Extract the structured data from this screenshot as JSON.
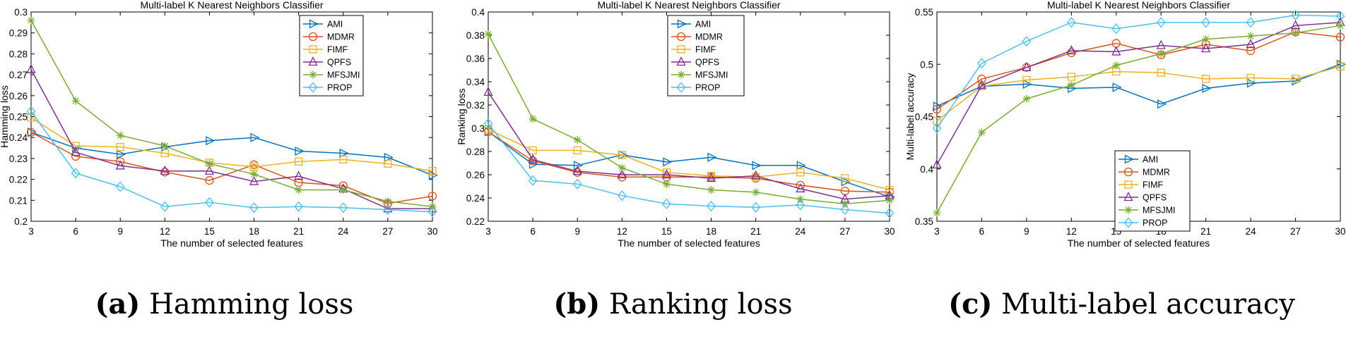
{
  "colors": {
    "AMI": "#0072BD",
    "MDMR": "#D95319",
    "FIMF": "#EDB120",
    "QPFS": "#7E2F8E",
    "MFSJMI": "#77AC30",
    "PROP": "#4DBEEE"
  },
  "chart_data": [
    {
      "type": "line",
      "title": "Multi-label K Nearest Neighbors Classifier",
      "xlabel": "The number of selected features",
      "ylabel": "Hamming loss",
      "caption_tag": "(a)",
      "caption_text": "Hamming loss",
      "x": [
        3,
        6,
        9,
        12,
        15,
        18,
        21,
        24,
        27,
        30
      ],
      "xlim": [
        3,
        30
      ],
      "ylim": [
        0.2,
        0.3
      ],
      "yticks": [
        0.2,
        0.21,
        0.22,
        0.23,
        0.24,
        0.25,
        0.26,
        0.27,
        0.28,
        0.29,
        0.3
      ],
      "ytick_labels": [
        "0.2",
        "0.21",
        "0.22",
        "0.23",
        "0.24",
        "0.25",
        "0.26",
        "0.27",
        "0.28",
        "0.29",
        "0.3"
      ],
      "xticks": [
        3,
        6,
        9,
        12,
        15,
        18,
        21,
        24,
        27,
        30
      ],
      "xtick_labels": [
        "3",
        "6",
        "9",
        "12",
        "15",
        "18",
        "21",
        "24",
        "27",
        "30"
      ],
      "legend_position": "top-right",
      "series": [
        {
          "name": "AMI",
          "marker": "triangle-right",
          "values": [
            0.2425,
            0.235,
            0.232,
            0.2355,
            0.2385,
            0.24,
            0.2335,
            0.2325,
            0.2305,
            0.222
          ]
        },
        {
          "name": "MDMR",
          "marker": "circle",
          "values": [
            0.2425,
            0.231,
            0.2285,
            0.2235,
            0.2195,
            0.227,
            0.2185,
            0.217,
            0.2085,
            0.212
          ]
        },
        {
          "name": "FIMF",
          "marker": "square",
          "values": [
            0.2495,
            0.236,
            0.2355,
            0.2325,
            0.228,
            0.226,
            0.2285,
            0.2295,
            0.2275,
            0.224
          ]
        },
        {
          "name": "QPFS",
          "marker": "triangle-up",
          "values": [
            0.2725,
            0.233,
            0.2265,
            0.224,
            0.224,
            0.219,
            0.2215,
            0.2155,
            0.206,
            0.206
          ]
        },
        {
          "name": "MFSJMI",
          "marker": "asterisk",
          "values": [
            0.296,
            0.2575,
            0.241,
            0.236,
            0.2275,
            0.2225,
            0.215,
            0.215,
            0.2095,
            0.207
          ]
        },
        {
          "name": "PROP",
          "marker": "diamond",
          "values": [
            0.2525,
            0.223,
            0.2165,
            0.207,
            0.209,
            0.2065,
            0.207,
            0.2065,
            0.2055,
            0.2045
          ]
        }
      ]
    },
    {
      "type": "line",
      "title": "Multi-label K Nearest Neighbors Classifier",
      "xlabel": "The number of selected features",
      "ylabel": "Ranking loss",
      "caption_tag": "(b)",
      "caption_text": "Ranking loss",
      "x": [
        3,
        6,
        9,
        12,
        15,
        18,
        21,
        24,
        27,
        30
      ],
      "xlim": [
        3,
        30
      ],
      "ylim": [
        0.22,
        0.4
      ],
      "yticks": [
        0.22,
        0.24,
        0.26,
        0.28,
        0.3,
        0.32,
        0.34,
        0.36,
        0.38,
        0.4
      ],
      "ytick_labels": [
        "0.22",
        "0.24",
        "0.26",
        "0.28",
        "0.3",
        "0.32",
        "0.34",
        "0.36",
        "0.38",
        "0.4"
      ],
      "xticks": [
        3,
        6,
        9,
        12,
        15,
        18,
        21,
        24,
        27,
        30
      ],
      "xtick_labels": [
        "3",
        "6",
        "9",
        "12",
        "15",
        "18",
        "21",
        "24",
        "27",
        "30"
      ],
      "legend_position": "top-right",
      "series": [
        {
          "name": "AMI",
          "marker": "triangle-right",
          "values": [
            0.297,
            0.269,
            0.268,
            0.277,
            0.271,
            0.275,
            0.268,
            0.268,
            0.254,
            0.241
          ]
        },
        {
          "name": "MDMR",
          "marker": "circle",
          "values": [
            0.297,
            0.272,
            0.262,
            0.258,
            0.258,
            0.258,
            0.257,
            0.251,
            0.246,
            0.245
          ]
        },
        {
          "name": "FIMF",
          "marker": "square",
          "values": [
            0.299,
            0.281,
            0.281,
            0.277,
            0.262,
            0.259,
            0.258,
            0.262,
            0.257,
            0.247
          ]
        },
        {
          "name": "QPFS",
          "marker": "triangle-up",
          "values": [
            0.331,
            0.273,
            0.263,
            0.26,
            0.26,
            0.257,
            0.259,
            0.248,
            0.239,
            0.242
          ]
        },
        {
          "name": "MFSJMI",
          "marker": "asterisk",
          "values": [
            0.381,
            0.308,
            0.29,
            0.266,
            0.252,
            0.247,
            0.245,
            0.239,
            0.235,
            0.238
          ]
        },
        {
          "name": "PROP",
          "marker": "diamond",
          "values": [
            0.304,
            0.255,
            0.252,
            0.242,
            0.235,
            0.233,
            0.232,
            0.234,
            0.23,
            0.227
          ]
        }
      ]
    },
    {
      "type": "line",
      "title": "Multi-label K Nearest Neighbors Classifier",
      "xlabel": "The number of selected features",
      "ylabel": "Multi-label accuracy",
      "caption_tag": "(c)",
      "caption_text": "Multi-label accuracy",
      "x": [
        3,
        6,
        9,
        12,
        15,
        18,
        21,
        24,
        27,
        30
      ],
      "xlim": [
        3,
        30
      ],
      "ylim": [
        0.35,
        0.55
      ],
      "yticks": [
        0.35,
        0.4,
        0.45,
        0.5,
        0.55
      ],
      "ytick_labels": [
        "0.35",
        "0.4",
        "0.45",
        "0.5",
        "0.55"
      ],
      "xticks": [
        3,
        6,
        9,
        12,
        15,
        18,
        21,
        24,
        27,
        30
      ],
      "xtick_labels": [
        "3",
        "6",
        "9",
        "12",
        "15",
        "18",
        "21",
        "24",
        "27",
        "30"
      ],
      "legend_position": "bottom-right",
      "series": [
        {
          "name": "AMI",
          "marker": "triangle-right",
          "values": [
            0.46,
            0.479,
            0.481,
            0.477,
            0.478,
            0.462,
            0.477,
            0.482,
            0.484,
            0.5
          ]
        },
        {
          "name": "MDMR",
          "marker": "circle",
          "values": [
            0.457,
            0.486,
            0.497,
            0.511,
            0.52,
            0.509,
            0.519,
            0.513,
            0.531,
            0.526
          ]
        },
        {
          "name": "FIMF",
          "marker": "square",
          "values": [
            0.446,
            0.479,
            0.485,
            0.488,
            0.493,
            0.492,
            0.486,
            0.487,
            0.486,
            0.498
          ]
        },
        {
          "name": "QPFS",
          "marker": "triangle-up",
          "values": [
            0.404,
            0.48,
            0.497,
            0.513,
            0.512,
            0.518,
            0.515,
            0.519,
            0.537,
            0.54
          ]
        },
        {
          "name": "MFSJMI",
          "marker": "asterisk",
          "values": [
            0.358,
            0.435,
            0.467,
            0.48,
            0.499,
            0.51,
            0.524,
            0.527,
            0.53,
            0.537
          ]
        },
        {
          "name": "PROP",
          "marker": "diamond",
          "values": [
            0.439,
            0.501,
            0.522,
            0.54,
            0.534,
            0.54,
            0.54,
            0.54,
            0.547,
            0.546
          ]
        }
      ]
    }
  ]
}
